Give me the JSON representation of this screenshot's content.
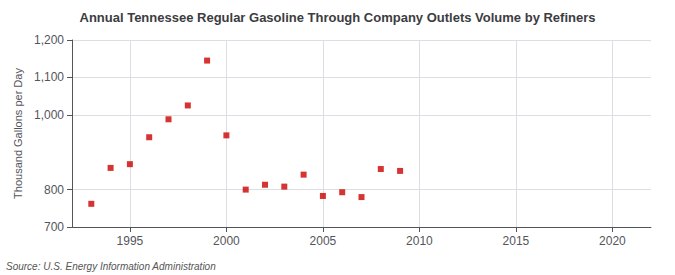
{
  "chart_data": {
    "type": "scatter",
    "title": "Annual Tennessee Regular Gasoline Through Company Outlets Volume by Refiners",
    "ylabel": "Thousand Gallons per Day",
    "annotations": [
      "Source: U.S. Energy Information Administration"
    ],
    "x": [
      1993,
      1994,
      1995,
      1996,
      1997,
      1998,
      1999,
      2000,
      2001,
      2002,
      2003,
      2004,
      2005,
      2006,
      2007,
      2008,
      2009
    ],
    "values": [
      762,
      858,
      868,
      940,
      988,
      1025,
      1145,
      945,
      800,
      813,
      808,
      840,
      783,
      793,
      780,
      855,
      850
    ],
    "color": "#cc0000",
    "marker": "square",
    "xlim": [
      1992,
      2022
    ],
    "xticks": [
      1995,
      2000,
      2005,
      2010,
      2015,
      2020
    ],
    "ylim": [
      700,
      1200
    ],
    "yticks": [
      700,
      800,
      {
        "value": 1000,
        "label": "1,000"
      },
      {
        "value": 1100,
        "label": "1,100"
      },
      {
        "value": 1200,
        "label": "1,200"
      }
    ],
    "grid": true
  }
}
